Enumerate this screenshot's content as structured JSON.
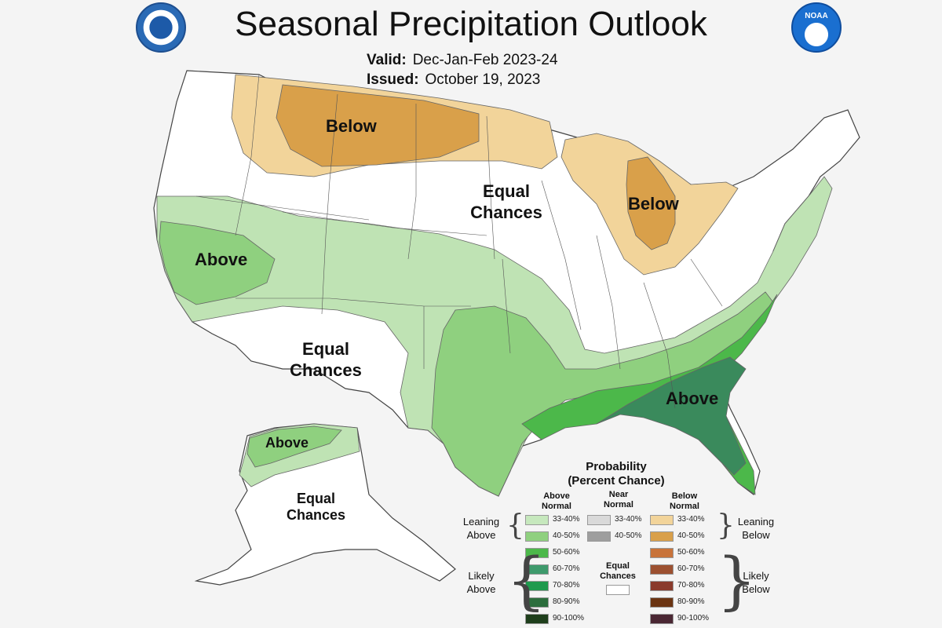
{
  "header": {
    "title": "Seasonal Precipitation Outlook",
    "valid_label": "Valid:",
    "valid_value": "Dec-Jan-Feb 2023-24",
    "issued_label": "Issued:",
    "issued_value": "October 19, 2023"
  },
  "logos": {
    "left": "commerce-seal-icon",
    "right": "noaa-logo-icon",
    "right_text": "NOAA"
  },
  "regions": {
    "below_north": "Below",
    "below_lakes": "Below",
    "above_west": "Above",
    "above_southeast": "Above",
    "above_alaska": "Above",
    "equal_central": [
      "Equal",
      "Chances"
    ],
    "equal_southwest": [
      "Equal",
      "Chances"
    ],
    "equal_alaska": [
      "Equal",
      "Chances"
    ]
  },
  "colors": {
    "below_light": "#f2d49a",
    "below_dark": "#d9a04a",
    "above_light": "#bfe3b4",
    "above_mid": "#8fd07f",
    "above_strong": "#4cb84a",
    "above_dark": "#3a8a5c",
    "land": "#ffffff",
    "border": "#444444"
  },
  "legend": {
    "title": [
      "Probability",
      "(Percent Chance)"
    ],
    "above_header": [
      "Above",
      "Normal"
    ],
    "near_header": [
      "Near",
      "Normal"
    ],
    "below_header": [
      "Below",
      "Normal"
    ],
    "equal_label": [
      "Equal",
      "Chances"
    ],
    "leaning_above": [
      "Leaning",
      "Above"
    ],
    "likely_above": [
      "Likely",
      "Above"
    ],
    "leaning_below": [
      "Leaning",
      "Below"
    ],
    "likely_below": [
      "Likely",
      "Below"
    ],
    "above": [
      {
        "label": "33-40%",
        "color": "#c6e8bd"
      },
      {
        "label": "40-50%",
        "color": "#8fd07f"
      },
      {
        "label": "50-60%",
        "color": "#4cb84a"
      },
      {
        "label": "60-70%",
        "color": "#3e9a6c"
      },
      {
        "label": "70-80%",
        "color": "#1f9a4e"
      },
      {
        "label": "80-90%",
        "color": "#2c6e3d"
      },
      {
        "label": "90-100%",
        "color": "#1f3f1c"
      }
    ],
    "near": [
      {
        "label": "33-40%",
        "color": "#d9d9d9"
      },
      {
        "label": "40-50%",
        "color": "#9e9e9e"
      }
    ],
    "below": [
      {
        "label": "33-40%",
        "color": "#f2d49a"
      },
      {
        "label": "40-50%",
        "color": "#d9a04a"
      },
      {
        "label": "50-60%",
        "color": "#c8733a"
      },
      {
        "label": "60-70%",
        "color": "#9c5030"
      },
      {
        "label": "70-80%",
        "color": "#8a3b2c"
      },
      {
        "label": "80-90%",
        "color": "#6b3412"
      },
      {
        "label": "90-100%",
        "color": "#4a2733"
      }
    ]
  }
}
